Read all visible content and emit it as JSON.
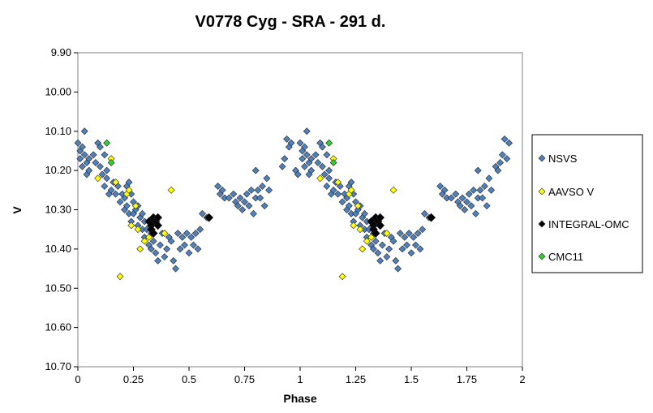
{
  "chart_data": {
    "type": "scatter",
    "title": "V0778 Cyg - SRA - 291  d.",
    "xlabel": "Phase",
    "ylabel": "V",
    "xlim": [
      0,
      2
    ],
    "ylim": [
      9.9,
      10.7
    ],
    "y_inverted": true,
    "x_ticks": [
      "0",
      "0.25",
      "0.5",
      "0.75",
      "1",
      "1.25",
      "1.5",
      "1.75",
      "2"
    ],
    "y_ticks": [
      "9.90",
      "10.00",
      "10.10",
      "10.20",
      "10.30",
      "10.40",
      "10.50",
      "10.60",
      "10.70"
    ],
    "grid": false,
    "legend_position": "right",
    "series": [
      {
        "name": "NSVS",
        "color": "#4f81bd",
        "marker": "diamond",
        "points": [
          [
            0.0,
            10.13
          ],
          [
            0.01,
            10.15
          ],
          [
            0.01,
            10.17
          ],
          [
            0.02,
            10.14
          ],
          [
            0.02,
            10.19
          ],
          [
            0.03,
            10.1
          ],
          [
            0.03,
            10.16
          ],
          [
            0.04,
            10.18
          ],
          [
            0.04,
            10.21
          ],
          [
            0.05,
            10.2
          ],
          [
            0.05,
            10.17
          ],
          [
            0.07,
            10.16
          ],
          [
            0.08,
            10.18
          ],
          [
            0.09,
            10.13
          ],
          [
            0.1,
            10.19
          ],
          [
            0.1,
            10.14
          ],
          [
            0.11,
            10.21
          ],
          [
            0.12,
            10.16
          ],
          [
            0.12,
            10.24
          ],
          [
            0.13,
            10.2
          ],
          [
            0.13,
            10.22
          ],
          [
            0.14,
            10.26
          ],
          [
            0.15,
            10.25
          ],
          [
            0.16,
            10.23
          ],
          [
            0.17,
            10.26
          ],
          [
            0.18,
            10.24
          ],
          [
            0.19,
            10.28
          ],
          [
            0.2,
            10.26
          ],
          [
            0.21,
            10.27
          ],
          [
            0.21,
            10.3
          ],
          [
            0.22,
            10.24
          ],
          [
            0.22,
            10.29
          ],
          [
            0.23,
            10.23
          ],
          [
            0.23,
            10.31
          ],
          [
            0.24,
            10.26
          ],
          [
            0.24,
            10.33
          ],
          [
            0.25,
            10.28
          ],
          [
            0.25,
            10.31
          ],
          [
            0.26,
            10.3
          ],
          [
            0.27,
            10.34
          ],
          [
            0.27,
            10.29
          ],
          [
            0.28,
            10.32
          ],
          [
            0.29,
            10.31
          ],
          [
            0.29,
            10.35
          ],
          [
            0.3,
            10.33
          ],
          [
            0.3,
            10.37
          ],
          [
            0.31,
            10.35
          ],
          [
            0.32,
            10.39
          ],
          [
            0.33,
            10.36
          ],
          [
            0.33,
            10.4
          ],
          [
            0.34,
            10.38
          ],
          [
            0.35,
            10.41
          ],
          [
            0.36,
            10.43
          ],
          [
            0.37,
            10.39
          ],
          [
            0.38,
            10.36
          ],
          [
            0.39,
            10.42
          ],
          [
            0.4,
            10.4
          ],
          [
            0.41,
            10.37
          ],
          [
            0.42,
            10.38
          ],
          [
            0.43,
            10.43
          ],
          [
            0.44,
            10.45
          ],
          [
            0.45,
            10.36
          ],
          [
            0.46,
            10.4
          ],
          [
            0.47,
            10.37
          ],
          [
            0.48,
            10.39
          ],
          [
            0.49,
            10.36
          ],
          [
            0.5,
            10.41
          ],
          [
            0.51,
            10.37
          ],
          [
            0.52,
            10.39
          ],
          [
            0.53,
            10.36
          ],
          [
            0.54,
            10.4
          ],
          [
            0.55,
            10.35
          ],
          [
            0.56,
            10.31
          ],
          [
            0.58,
            10.32
          ],
          [
            0.63,
            10.24
          ],
          [
            0.64,
            10.26
          ],
          [
            0.65,
            10.25
          ],
          [
            0.66,
            10.27
          ],
          [
            0.68,
            10.27
          ],
          [
            0.7,
            10.26
          ],
          [
            0.71,
            10.28
          ],
          [
            0.72,
            10.29
          ],
          [
            0.73,
            10.27
          ],
          [
            0.74,
            10.3
          ],
          [
            0.75,
            10.28
          ],
          [
            0.76,
            10.26
          ],
          [
            0.77,
            10.29
          ],
          [
            0.78,
            10.25
          ],
          [
            0.79,
            10.31
          ],
          [
            0.8,
            10.27
          ],
          [
            0.8,
            10.2
          ],
          [
            0.81,
            10.25
          ],
          [
            0.82,
            10.27
          ],
          [
            0.83,
            10.24
          ],
          [
            0.84,
            10.29
          ],
          [
            0.85,
            10.22
          ],
          [
            0.86,
            10.25
          ],
          [
            0.92,
            10.19
          ],
          [
            0.93,
            10.17
          ],
          [
            0.94,
            10.12
          ],
          [
            0.95,
            10.14
          ],
          [
            0.96,
            10.13
          ],
          [
            0.98,
            10.2
          ],
          [
            0.99,
            10.21
          ],
          [
            1.0,
            10.13
          ],
          [
            1.01,
            10.15
          ],
          [
            1.01,
            10.17
          ],
          [
            1.02,
            10.14
          ],
          [
            1.02,
            10.19
          ],
          [
            1.03,
            10.1
          ],
          [
            1.03,
            10.16
          ],
          [
            1.04,
            10.18
          ],
          [
            1.04,
            10.21
          ],
          [
            1.05,
            10.2
          ],
          [
            1.05,
            10.17
          ],
          [
            1.07,
            10.16
          ],
          [
            1.08,
            10.18
          ],
          [
            1.09,
            10.13
          ],
          [
            1.1,
            10.19
          ],
          [
            1.1,
            10.14
          ],
          [
            1.11,
            10.21
          ],
          [
            1.12,
            10.16
          ],
          [
            1.12,
            10.24
          ],
          [
            1.13,
            10.2
          ],
          [
            1.13,
            10.22
          ],
          [
            1.14,
            10.26
          ],
          [
            1.15,
            10.25
          ],
          [
            1.16,
            10.23
          ],
          [
            1.17,
            10.26
          ],
          [
            1.18,
            10.24
          ],
          [
            1.19,
            10.28
          ],
          [
            1.2,
            10.26
          ],
          [
            1.21,
            10.27
          ],
          [
            1.21,
            10.3
          ],
          [
            1.22,
            10.24
          ],
          [
            1.22,
            10.29
          ],
          [
            1.23,
            10.23
          ],
          [
            1.23,
            10.31
          ],
          [
            1.24,
            10.26
          ],
          [
            1.24,
            10.33
          ],
          [
            1.25,
            10.28
          ],
          [
            1.25,
            10.31
          ],
          [
            1.26,
            10.3
          ],
          [
            1.27,
            10.34
          ],
          [
            1.27,
            10.29
          ],
          [
            1.28,
            10.32
          ],
          [
            1.29,
            10.31
          ],
          [
            1.29,
            10.35
          ],
          [
            1.3,
            10.33
          ],
          [
            1.3,
            10.37
          ],
          [
            1.31,
            10.35
          ],
          [
            1.32,
            10.39
          ],
          [
            1.33,
            10.36
          ],
          [
            1.33,
            10.4
          ],
          [
            1.34,
            10.38
          ],
          [
            1.35,
            10.41
          ],
          [
            1.36,
            10.43
          ],
          [
            1.37,
            10.39
          ],
          [
            1.38,
            10.36
          ],
          [
            1.39,
            10.42
          ],
          [
            1.4,
            10.4
          ],
          [
            1.41,
            10.37
          ],
          [
            1.42,
            10.38
          ],
          [
            1.43,
            10.43
          ],
          [
            1.44,
            10.45
          ],
          [
            1.45,
            10.36
          ],
          [
            1.46,
            10.4
          ],
          [
            1.47,
            10.37
          ],
          [
            1.48,
            10.39
          ],
          [
            1.49,
            10.36
          ],
          [
            1.5,
            10.41
          ],
          [
            1.51,
            10.37
          ],
          [
            1.52,
            10.39
          ],
          [
            1.53,
            10.36
          ],
          [
            1.54,
            10.4
          ],
          [
            1.55,
            10.35
          ],
          [
            1.56,
            10.31
          ],
          [
            1.58,
            10.32
          ],
          [
            1.63,
            10.24
          ],
          [
            1.64,
            10.26
          ],
          [
            1.65,
            10.25
          ],
          [
            1.66,
            10.27
          ],
          [
            1.68,
            10.27
          ],
          [
            1.7,
            10.26
          ],
          [
            1.71,
            10.28
          ],
          [
            1.72,
            10.29
          ],
          [
            1.73,
            10.27
          ],
          [
            1.74,
            10.3
          ],
          [
            1.75,
            10.28
          ],
          [
            1.76,
            10.26
          ],
          [
            1.77,
            10.29
          ],
          [
            1.78,
            10.25
          ],
          [
            1.79,
            10.31
          ],
          [
            1.8,
            10.27
          ],
          [
            1.8,
            10.2
          ],
          [
            1.81,
            10.25
          ],
          [
            1.82,
            10.27
          ],
          [
            1.83,
            10.24
          ],
          [
            1.84,
            10.29
          ],
          [
            1.85,
            10.22
          ],
          [
            1.86,
            10.25
          ],
          [
            1.88,
            10.19
          ],
          [
            1.89,
            10.2
          ],
          [
            1.9,
            10.18
          ],
          [
            1.91,
            10.16
          ],
          [
            1.92,
            10.12
          ],
          [
            1.93,
            10.17
          ],
          [
            1.94,
            10.13
          ]
        ]
      },
      {
        "name": "AAVSO V",
        "color": "#ffff00",
        "marker": "diamond",
        "points": [
          [
            0.09,
            10.22
          ],
          [
            0.15,
            10.17
          ],
          [
            0.17,
            10.23
          ],
          [
            0.19,
            10.47
          ],
          [
            0.22,
            10.26
          ],
          [
            0.23,
            10.25
          ],
          [
            0.24,
            10.34
          ],
          [
            0.26,
            10.29
          ],
          [
            0.27,
            10.35
          ],
          [
            0.28,
            10.4
          ],
          [
            0.3,
            10.38
          ],
          [
            0.32,
            10.37
          ],
          [
            0.39,
            10.36
          ],
          [
            0.42,
            10.25
          ],
          [
            1.09,
            10.22
          ],
          [
            1.15,
            10.17
          ],
          [
            1.17,
            10.23
          ],
          [
            1.19,
            10.47
          ],
          [
            1.22,
            10.26
          ],
          [
            1.23,
            10.25
          ],
          [
            1.24,
            10.34
          ],
          [
            1.26,
            10.29
          ],
          [
            1.27,
            10.35
          ],
          [
            1.28,
            10.4
          ],
          [
            1.3,
            10.38
          ],
          [
            1.32,
            10.37
          ],
          [
            1.39,
            10.36
          ],
          [
            1.42,
            10.25
          ]
        ]
      },
      {
        "name": "INTEGRAL-OMC",
        "color": "#000000",
        "marker": "diamond",
        "points": [
          [
            0.32,
            10.33
          ],
          [
            0.33,
            10.34
          ],
          [
            0.33,
            10.35
          ],
          [
            0.34,
            10.32
          ],
          [
            0.34,
            10.36
          ],
          [
            0.35,
            10.33
          ],
          [
            0.36,
            10.32
          ],
          [
            0.36,
            10.34
          ],
          [
            0.59,
            10.32
          ],
          [
            1.32,
            10.33
          ],
          [
            1.33,
            10.34
          ],
          [
            1.33,
            10.35
          ],
          [
            1.34,
            10.32
          ],
          [
            1.34,
            10.36
          ],
          [
            1.35,
            10.33
          ],
          [
            1.36,
            10.32
          ],
          [
            1.36,
            10.34
          ],
          [
            1.59,
            10.32
          ]
        ]
      },
      {
        "name": "CMC11",
        "color": "#33cc33",
        "marker": "diamond",
        "points": [
          [
            0.13,
            10.13
          ],
          [
            0.15,
            10.18
          ],
          [
            1.13,
            10.13
          ],
          [
            1.15,
            10.18
          ]
        ]
      }
    ]
  }
}
